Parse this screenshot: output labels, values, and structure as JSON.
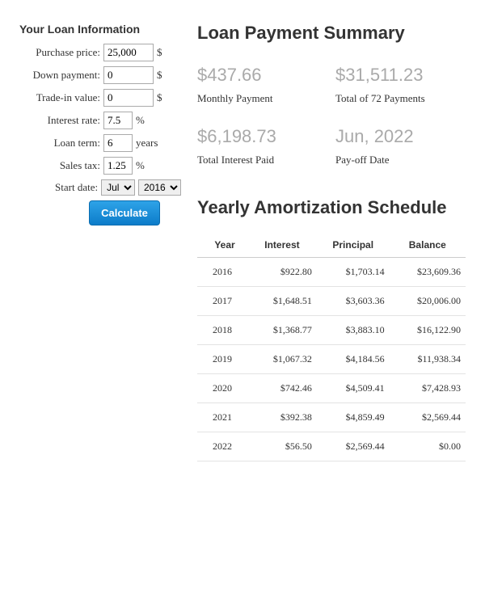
{
  "form": {
    "title": "Your Loan Information",
    "purchase_price": {
      "label": "Purchase price:",
      "value": "25,000",
      "suffix": "$"
    },
    "down_payment": {
      "label": "Down payment:",
      "value": "0",
      "suffix": "$"
    },
    "trade_in": {
      "label": "Trade-in value:",
      "value": "0",
      "suffix": "$"
    },
    "interest_rate": {
      "label": "Interest rate:",
      "value": "7.5",
      "suffix": "%"
    },
    "loan_term": {
      "label": "Loan term:",
      "value": "6",
      "suffix": "years"
    },
    "sales_tax": {
      "label": "Sales tax:",
      "value": "1.25",
      "suffix": "%"
    },
    "start_date": {
      "label": "Start date:",
      "month": "Jul",
      "year": "2016"
    },
    "calculate": "Calculate"
  },
  "summary": {
    "title": "Loan Payment Summary",
    "monthly_payment": {
      "value": "$437.66",
      "label": "Monthly Payment"
    },
    "total_payments": {
      "value": "$31,511.23",
      "label": "Total of 72 Payments"
    },
    "total_interest": {
      "value": "$6,198.73",
      "label": "Total Interest Paid"
    },
    "payoff_date": {
      "value": "Jun, 2022",
      "label": "Pay-off Date"
    }
  },
  "schedule": {
    "title": "Yearly Amortization Schedule",
    "columns": [
      "Year",
      "Interest",
      "Principal",
      "Balance"
    ],
    "rows": [
      [
        "2016",
        "$922.80",
        "$1,703.14",
        "$23,609.36"
      ],
      [
        "2017",
        "$1,648.51",
        "$3,603.36",
        "$20,006.00"
      ],
      [
        "2018",
        "$1,368.77",
        "$3,883.10",
        "$16,122.90"
      ],
      [
        "2019",
        "$1,067.32",
        "$4,184.56",
        "$11,938.34"
      ],
      [
        "2020",
        "$742.46",
        "$4,509.41",
        "$7,428.93"
      ],
      [
        "2021",
        "$392.38",
        "$4,859.49",
        "$2,569.44"
      ],
      [
        "2022",
        "$56.50",
        "$2,569.44",
        "$0.00"
      ]
    ]
  }
}
